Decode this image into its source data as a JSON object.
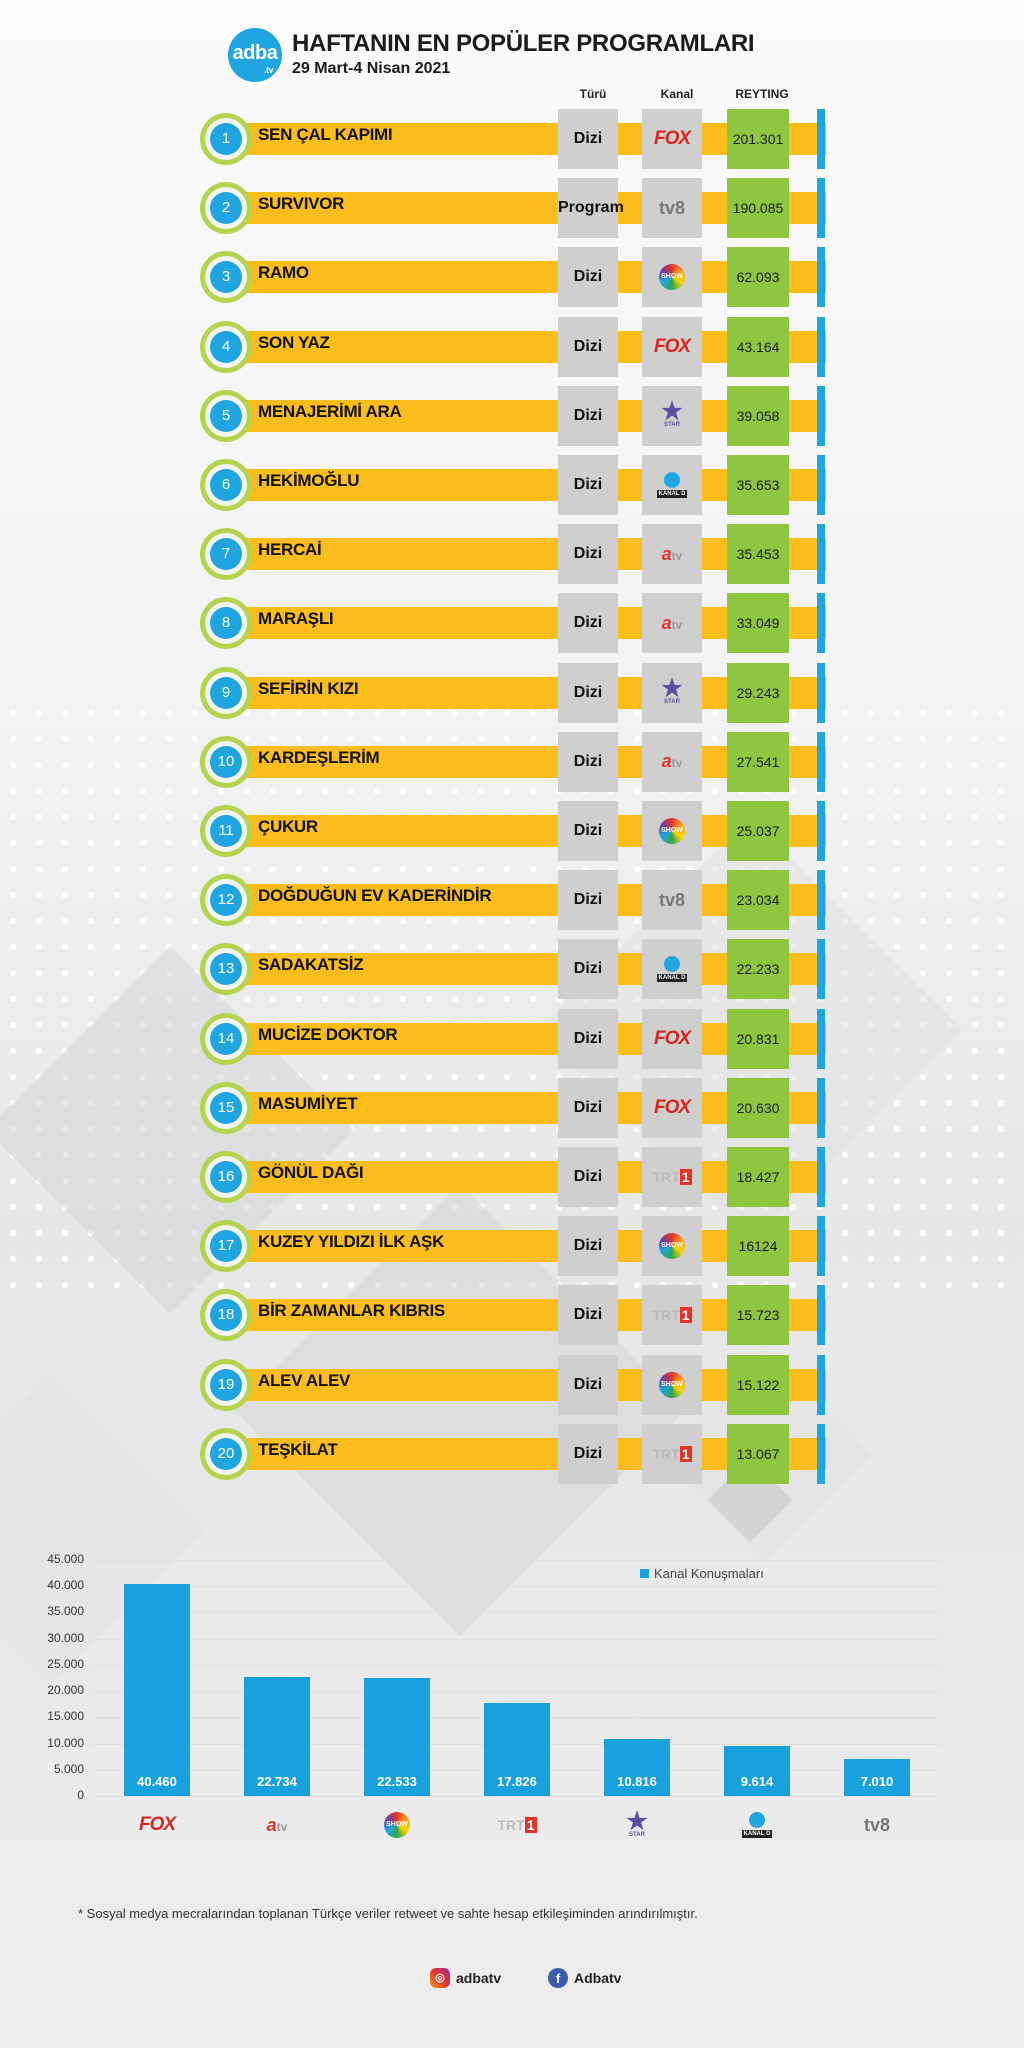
{
  "header": {
    "logo_text": "adba",
    "logo_sub": ".tv",
    "title": "HAFTANIN EN POPÜLER PROGRAMLARI",
    "subtitle": "29 Mart-4 Nisan 2021"
  },
  "columns": {
    "type": "Türü",
    "channel": "Kanal",
    "rating": "REYTING"
  },
  "colors": {
    "bar": "#fbbd1c",
    "accent": "#1fa6e0",
    "rating": "#8ec640",
    "badge_ring": "#b3d44c",
    "chart_bar": "#18a1dd"
  },
  "rows": [
    {
      "rank": "1",
      "name": "SEN ÇAL KAPIMI",
      "type": "Dizi",
      "channel": "fox",
      "rating": "201.301"
    },
    {
      "rank": "2",
      "name": "SURVIVOR",
      "type": "Program",
      "channel": "tv8",
      "rating": "190.085"
    },
    {
      "rank": "3",
      "name": "RAMO",
      "type": "Dizi",
      "channel": "show",
      "rating": "62.093"
    },
    {
      "rank": "4",
      "name": "SON YAZ",
      "type": "Dizi",
      "channel": "fox",
      "rating": "43.164"
    },
    {
      "rank": "5",
      "name": "MENAJERİMİ ARA",
      "type": "Dizi",
      "channel": "star",
      "rating": "39.058"
    },
    {
      "rank": "6",
      "name": "HEKİMOĞLU",
      "type": "Dizi",
      "channel": "kanald",
      "rating": "35.653"
    },
    {
      "rank": "7",
      "name": "HERCAİ",
      "type": "Dizi",
      "channel": "atv",
      "rating": "35.453"
    },
    {
      "rank": "8",
      "name": "MARAŞLI",
      "type": "Dizi",
      "channel": "atv",
      "rating": "33.049"
    },
    {
      "rank": "9",
      "name": "SEFİRİN KIZI",
      "type": "Dizi",
      "channel": "star",
      "rating": "29.243"
    },
    {
      "rank": "10",
      "name": "KARDEŞLERİM",
      "type": "Dizi",
      "channel": "atv",
      "rating": "27.541"
    },
    {
      "rank": "11",
      "name": "ÇUKUR",
      "type": "Dizi",
      "channel": "show",
      "rating": "25.037"
    },
    {
      "rank": "12",
      "name": "DOĞDUĞUN EV KADERİNDİR",
      "type": "Dizi",
      "channel": "tv8",
      "rating": "23.034"
    },
    {
      "rank": "13",
      "name": "SADAKATSİZ",
      "type": "Dizi",
      "channel": "kanald",
      "rating": "22.233"
    },
    {
      "rank": "14",
      "name": "MUCİZE DOKTOR",
      "type": "Dizi",
      "channel": "fox",
      "rating": "20.831"
    },
    {
      "rank": "15",
      "name": "MASUMİYET",
      "type": "Dizi",
      "channel": "fox",
      "rating": "20.630"
    },
    {
      "rank": "16",
      "name": "GÖNÜL DAĞI",
      "type": "Dizi",
      "channel": "trt1",
      "rating": "18.427"
    },
    {
      "rank": "17",
      "name": "KUZEY YILDIZI İLK AŞK",
      "type": "Dizi",
      "channel": "show",
      "rating": "16124"
    },
    {
      "rank": "18",
      "name": "BİR ZAMANLAR KIBRIS",
      "type": "Dizi",
      "channel": "trt1",
      "rating": "15.723"
    },
    {
      "rank": "19",
      "name": "ALEV ALEV",
      "type": "Dizi",
      "channel": "show",
      "rating": "15.122"
    },
    {
      "rank": "20",
      "name": "TEŞKİLAT",
      "type": "Dizi",
      "channel": "trt1",
      "rating": "13.067"
    }
  ],
  "channel_logos": {
    "fox": "FOX",
    "tv8": "tv8",
    "show": "SHOW",
    "star": "★",
    "star_sub": "STAR",
    "kanald": "KANAL D",
    "atv": "a",
    "atv_sub": "tv",
    "trt1": "TRT",
    "trt1_num": "1"
  },
  "chart_data": {
    "type": "bar",
    "categories": [
      "FOX",
      "atv",
      "SHOW",
      "TRT 1",
      "STAR",
      "KANAL D",
      "tv8"
    ],
    "values": [
      40460,
      22734,
      22533,
      17826,
      10816,
      9614,
      7010
    ],
    "value_labels": [
      "40.460",
      "22.734",
      "22.533",
      "17.826",
      "10.816",
      "9.614",
      "7.010"
    ],
    "category_logos": [
      "fox",
      "atv",
      "show",
      "trt1",
      "star",
      "kanald",
      "tv8"
    ],
    "series": [
      {
        "name": "Kanal Konuşmaları"
      }
    ],
    "ylim": [
      0,
      45000
    ],
    "yticks": [
      0,
      5000,
      10000,
      15000,
      20000,
      25000,
      30000,
      35000,
      40000,
      45000
    ],
    "ytick_labels": [
      "0",
      "5.000",
      "10.000",
      "15.000",
      "20.000",
      "25.000",
      "30.000",
      "35.000",
      "40.000",
      "45.000"
    ],
    "grid": true,
    "legend_position": "top-right"
  },
  "footer": {
    "note": "* Sosyal medya mecralarından toplanan Türkçe veriler retweet ve sahte hesap etkileşiminden arındırılmıştır.",
    "instagram": "adbatv",
    "facebook": "Adbatv",
    "instagram_icon": "instagram-icon",
    "facebook_icon": "facebook-icon"
  }
}
